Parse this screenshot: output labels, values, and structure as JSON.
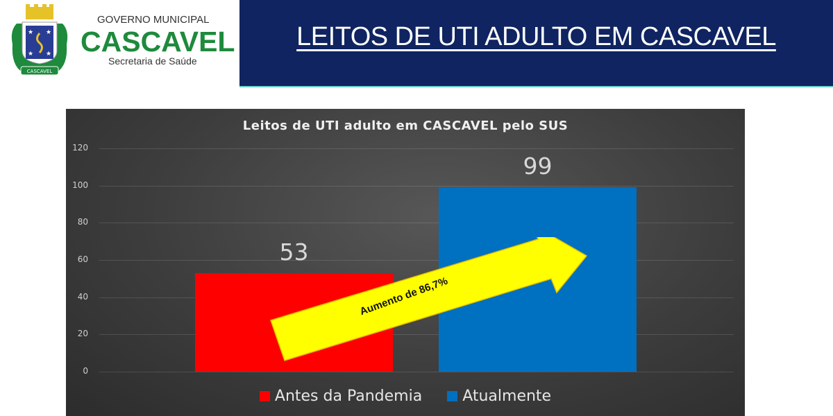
{
  "header": {
    "logo": {
      "line1": "GOVERNO MUNICIPAL",
      "line2": "CASCAVEL",
      "line3": "Secretaria de Saúde",
      "crest_label": "CASCAVEL"
    },
    "title": "LEITOS DE UTI ADULTO EM CASCAVEL",
    "banner_color": "#0f2460"
  },
  "chart_data": {
    "type": "bar",
    "title": "Leitos de UTI adulto em CASCAVEL pelo SUS",
    "categories": [
      "Antes da Pandemia",
      "Atualmente"
    ],
    "series": [
      {
        "name": "Antes da Pandemia",
        "values": [
          53
        ],
        "color": "#ff0000"
      },
      {
        "name": "Atualmente",
        "values": [
          99
        ],
        "color": "#0070c0"
      }
    ],
    "values": [
      53,
      99
    ],
    "data_labels": [
      "53",
      "99"
    ],
    "xlabel": "",
    "ylabel": "",
    "ylim": [
      0,
      120
    ],
    "yticks": [
      0,
      20,
      40,
      60,
      80,
      100,
      120
    ],
    "grid": true,
    "legend_position": "bottom",
    "annotation": "Aumento de 86,7%",
    "background": "dark gray gradient"
  }
}
